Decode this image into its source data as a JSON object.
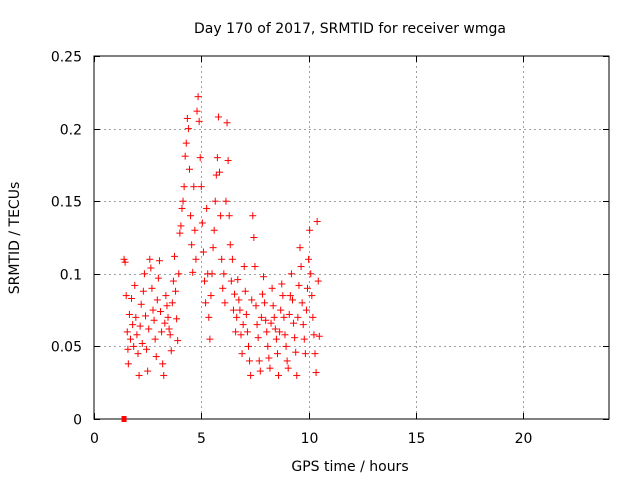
{
  "chart_data": {
    "type": "scatter",
    "title": "Day 170 of 2017, SRMTID for receiver wmga",
    "xlabel": "GPS time / hours",
    "ylabel": "SRMTID / TECUs",
    "xlim": [
      0,
      24
    ],
    "ylim": [
      0,
      0.25
    ],
    "xticks": [
      0,
      5,
      10,
      15,
      20
    ],
    "xtick_labels": [
      "0",
      "5",
      "10",
      "15",
      "20"
    ],
    "yticks": [
      0,
      0.05,
      0.1,
      0.15,
      0.2,
      0.25
    ],
    "ytick_labels": [
      "0",
      "0.05",
      "0.1",
      "0.15",
      "0.2",
      "0.25"
    ],
    "grid": true,
    "marker": "+",
    "color": "#ff0000",
    "series": [
      {
        "name": "SRMTID",
        "points": [
          [
            1.4,
            0.11
          ],
          [
            1.45,
            0.108
          ],
          [
            1.5,
            0.085
          ],
          [
            1.55,
            0.06
          ],
          [
            1.58,
            0.048
          ],
          [
            1.6,
            0.038
          ],
          [
            1.65,
            0.072
          ],
          [
            1.7,
            0.055
          ],
          [
            1.75,
            0.083
          ],
          [
            1.8,
            0.065
          ],
          [
            1.85,
            0.05
          ],
          [
            1.9,
            0.092
          ],
          [
            1.95,
            0.07
          ],
          [
            2.0,
            0.058
          ],
          [
            2.05,
            0.045
          ],
          [
            2.1,
            0.03
          ],
          [
            2.15,
            0.064
          ],
          [
            2.2,
            0.079
          ],
          [
            2.25,
            0.052
          ],
          [
            2.3,
            0.088
          ],
          [
            2.35,
            0.1
          ],
          [
            2.4,
            0.071
          ],
          [
            2.45,
            0.048
          ],
          [
            2.5,
            0.033
          ],
          [
            2.55,
            0.062
          ],
          [
            2.6,
            0.11
          ],
          [
            2.65,
            0.104
          ],
          [
            2.7,
            0.09
          ],
          [
            2.75,
            0.075
          ],
          [
            2.8,
            0.068
          ],
          [
            2.85,
            0.055
          ],
          [
            2.9,
            0.043
          ],
          [
            2.95,
            0.082
          ],
          [
            3.0,
            0.097
          ],
          [
            3.05,
            0.109
          ],
          [
            3.1,
            0.074
          ],
          [
            3.15,
            0.06
          ],
          [
            3.2,
            0.038
          ],
          [
            3.25,
            0.03
          ],
          [
            3.3,
            0.066
          ],
          [
            3.35,
            0.085
          ],
          [
            3.4,
            0.078
          ],
          [
            3.45,
            0.07
          ],
          [
            3.5,
            0.062
          ],
          [
            3.55,
            0.058
          ],
          [
            3.6,
            0.047
          ],
          [
            3.65,
            0.08
          ],
          [
            3.7,
            0.095
          ],
          [
            3.75,
            0.112
          ],
          [
            3.8,
            0.088
          ],
          [
            3.85,
            0.069
          ],
          [
            3.9,
            0.054
          ],
          [
            3.95,
            0.1
          ],
          [
            4.0,
            0.128
          ],
          [
            4.05,
            0.133
          ],
          [
            4.1,
            0.145
          ],
          [
            4.15,
            0.15
          ],
          [
            4.2,
            0.16
          ],
          [
            4.25,
            0.181
          ],
          [
            4.3,
            0.19
          ],
          [
            4.35,
            0.207
          ],
          [
            4.4,
            0.2
          ],
          [
            4.45,
            0.172
          ],
          [
            4.5,
            0.14
          ],
          [
            4.55,
            0.12
          ],
          [
            4.6,
            0.101
          ],
          [
            4.65,
            0.16
          ],
          [
            4.7,
            0.13
          ],
          [
            4.75,
            0.11
          ],
          [
            4.8,
            0.212
          ],
          [
            4.85,
            0.222
          ],
          [
            4.9,
            0.205
          ],
          [
            4.95,
            0.18
          ],
          [
            5.0,
            0.16
          ],
          [
            5.05,
            0.135
          ],
          [
            5.1,
            0.115
          ],
          [
            5.15,
            0.095
          ],
          [
            5.2,
            0.08
          ],
          [
            5.25,
            0.145
          ],
          [
            5.3,
            0.1
          ],
          [
            5.35,
            0.07
          ],
          [
            5.4,
            0.055
          ],
          [
            5.45,
            0.085
          ],
          [
            5.5,
            0.1
          ],
          [
            5.55,
            0.118
          ],
          [
            5.6,
            0.13
          ],
          [
            5.65,
            0.15
          ],
          [
            5.7,
            0.168
          ],
          [
            5.75,
            0.18
          ],
          [
            5.8,
            0.208
          ],
          [
            5.85,
            0.17
          ],
          [
            5.9,
            0.14
          ],
          [
            5.95,
            0.11
          ],
          [
            6.0,
            0.09
          ],
          [
            6.05,
            0.1
          ],
          [
            6.1,
            0.08
          ],
          [
            6.15,
            0.15
          ],
          [
            6.2,
            0.204
          ],
          [
            6.25,
            0.178
          ],
          [
            6.3,
            0.14
          ],
          [
            6.35,
            0.12
          ],
          [
            6.4,
            0.095
          ],
          [
            6.45,
            0.11
          ],
          [
            6.5,
            0.075
          ],
          [
            6.55,
            0.086
          ],
          [
            6.6,
            0.06
          ],
          [
            6.65,
            0.07
          ],
          [
            6.7,
            0.096
          ],
          [
            6.75,
            0.082
          ],
          [
            6.8,
            0.075
          ],
          [
            6.85,
            0.058
          ],
          [
            6.9,
            0.045
          ],
          [
            6.95,
            0.065
          ],
          [
            7.0,
            0.105
          ],
          [
            7.05,
            0.088
          ],
          [
            7.1,
            0.072
          ],
          [
            7.15,
            0.06
          ],
          [
            7.2,
            0.05
          ],
          [
            7.25,
            0.04
          ],
          [
            7.3,
            0.03
          ],
          [
            7.35,
            0.082
          ],
          [
            7.4,
            0.14
          ],
          [
            7.45,
            0.125
          ],
          [
            7.5,
            0.105
          ],
          [
            7.55,
            0.078
          ],
          [
            7.6,
            0.065
          ],
          [
            7.65,
            0.056
          ],
          [
            7.7,
            0.04
          ],
          [
            7.75,
            0.033
          ],
          [
            7.8,
            0.07
          ],
          [
            7.85,
            0.086
          ],
          [
            7.9,
            0.098
          ],
          [
            7.95,
            0.08
          ],
          [
            8.0,
            0.068
          ],
          [
            8.05,
            0.06
          ],
          [
            8.1,
            0.05
          ],
          [
            8.15,
            0.042
          ],
          [
            8.2,
            0.035
          ],
          [
            8.25,
            0.066
          ],
          [
            8.3,
            0.09
          ],
          [
            8.35,
            0.078
          ],
          [
            8.4,
            0.07
          ],
          [
            8.45,
            0.062
          ],
          [
            8.5,
            0.055
          ],
          [
            8.55,
            0.045
          ],
          [
            8.6,
            0.03
          ],
          [
            8.65,
            0.06
          ],
          [
            8.7,
            0.075
          ],
          [
            8.75,
            0.093
          ],
          [
            8.8,
            0.085
          ],
          [
            8.85,
            0.07
          ],
          [
            8.9,
            0.058
          ],
          [
            8.95,
            0.05
          ],
          [
            9.0,
            0.04
          ],
          [
            9.05,
            0.035
          ],
          [
            9.1,
            0.072
          ],
          [
            9.15,
            0.085
          ],
          [
            9.2,
            0.1
          ],
          [
            9.25,
            0.082
          ],
          [
            9.3,
            0.066
          ],
          [
            9.35,
            0.056
          ],
          [
            9.4,
            0.046
          ],
          [
            9.45,
            0.03
          ],
          [
            9.5,
            0.07
          ],
          [
            9.55,
            0.092
          ],
          [
            9.6,
            0.118
          ],
          [
            9.65,
            0.105
          ],
          [
            9.7,
            0.08
          ],
          [
            9.75,
            0.065
          ],
          [
            9.8,
            0.055
          ],
          [
            9.85,
            0.045
          ],
          [
            9.9,
            0.075
          ],
          [
            9.95,
            0.09
          ],
          [
            10.0,
            0.11
          ],
          [
            10.05,
            0.13
          ],
          [
            10.1,
            0.1
          ],
          [
            10.15,
            0.085
          ],
          [
            10.2,
            0.07
          ],
          [
            10.25,
            0.058
          ],
          [
            10.3,
            0.045
          ],
          [
            10.35,
            0.032
          ],
          [
            10.4,
            0.136
          ],
          [
            10.45,
            0.095
          ],
          [
            10.5,
            0.057
          ]
        ]
      }
    ],
    "marker_at_zero": [
      1.4,
      0.0
    ]
  }
}
